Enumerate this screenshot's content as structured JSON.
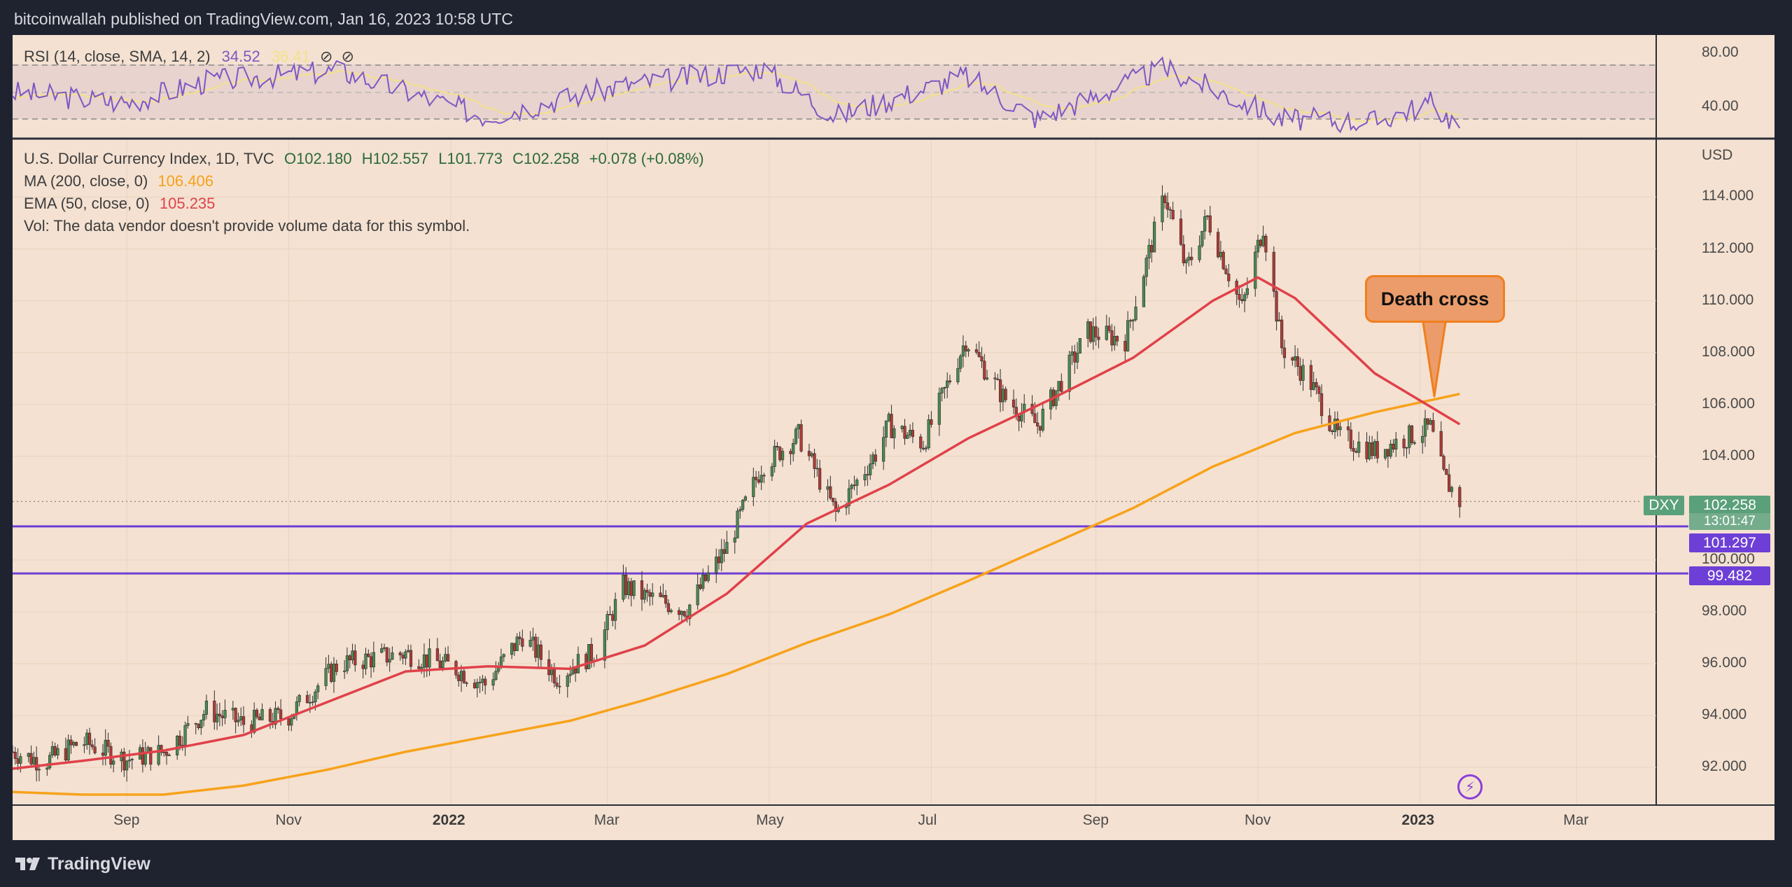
{
  "header": {
    "publisher_line": "bitcoinwallah published on TradingView.com, Jan 16, 2023 10:58 UTC"
  },
  "footer": {
    "brand": "TradingView",
    "logo_icon": "tradingview-logo-icon"
  },
  "rsi_panel": {
    "label": "RSI (14, close, SMA, 14, 2)",
    "rsi_value": "34.52",
    "sma_value": "36.41",
    "levels": [
      40.0,
      80.0
    ],
    "axis_labels": [
      "80.00",
      "40.00"
    ],
    "colors": {
      "rsi": "#7e57c2",
      "sma": "#f3e18a"
    }
  },
  "legend": {
    "symbol_line": "U.S. Dollar Currency Index, 1D, TVC",
    "open": "O102.180",
    "high": "H102.557",
    "low": "L101.773",
    "close": "C102.258",
    "change": "+0.078 (+0.08%)",
    "ma_label": "MA (200, close, 0)",
    "ma_value": "106.406",
    "ema_label": "EMA (50, close, 0)",
    "ema_value": "105.235",
    "vol_note": "Vol: The data vendor doesn't provide volume data for this symbol."
  },
  "price_axis": {
    "currency": "USD",
    "labels": [
      "114.000",
      "112.000",
      "110.000",
      "108.000",
      "106.000",
      "104.000",
      "100.000",
      "98.000",
      "96.000",
      "94.000",
      "92.000"
    ]
  },
  "time_axis": {
    "labels": [
      "Sep",
      "Nov",
      "2022",
      "Mar",
      "May",
      "Jul",
      "Sep",
      "Nov",
      "2023",
      "Mar"
    ]
  },
  "tags": {
    "symbol": "DXY",
    "last_price": "102.258",
    "countdown": "13:01:47",
    "level_1": "101.297",
    "level_2": "99.482"
  },
  "annotation": {
    "text": "Death cross"
  },
  "icons": {
    "flash": "flash-icon"
  },
  "colors": {
    "background": "#f4e1d1",
    "frame": "#1f2330",
    "up_candle": "#4a8a52",
    "down_candle": "#b03a35",
    "ma200": "#f7a21b",
    "ema50": "#e0414a",
    "support": "#6e3fd6",
    "annotation_fill": "#eb9c6a",
    "annotation_border": "#f07f1e"
  },
  "chart_data": {
    "type": "candlestick",
    "title": "U.S. Dollar Currency Index, 1D, TVC",
    "ylabel": "USD",
    "ylim": [
      90.6,
      116.2
    ],
    "x_range": [
      "2021-07-20",
      "2023-03-31"
    ],
    "series": [
      {
        "name": "MA (200, close, 0)",
        "points": [
          [
            "2021-07-20",
            91.05
          ],
          [
            "2021-08-15",
            90.95
          ],
          [
            "2021-09-15",
            90.95
          ],
          [
            "2021-10-15",
            91.3
          ],
          [
            "2021-11-15",
            91.9
          ],
          [
            "2021-12-15",
            92.6
          ],
          [
            "2022-01-15",
            93.2
          ],
          [
            "2022-02-15",
            93.8
          ],
          [
            "2022-03-15",
            94.6
          ],
          [
            "2022-04-15",
            95.6
          ],
          [
            "2022-05-15",
            96.8
          ],
          [
            "2022-06-15",
            97.9
          ],
          [
            "2022-07-15",
            99.2
          ],
          [
            "2022-08-15",
            100.6
          ],
          [
            "2022-09-15",
            102.0
          ],
          [
            "2022-10-15",
            103.6
          ],
          [
            "2022-11-15",
            104.9
          ],
          [
            "2022-12-15",
            105.7
          ],
          [
            "2023-01-16",
            106.406
          ]
        ]
      },
      {
        "name": "EMA (50, close, 0)",
        "points": [
          [
            "2021-07-20",
            91.95
          ],
          [
            "2021-08-15",
            92.25
          ],
          [
            "2021-09-15",
            92.65
          ],
          [
            "2021-10-15",
            93.25
          ],
          [
            "2021-11-15",
            94.5
          ],
          [
            "2021-12-15",
            95.7
          ],
          [
            "2022-01-15",
            95.9
          ],
          [
            "2022-02-15",
            95.8
          ],
          [
            "2022-03-15",
            96.7
          ],
          [
            "2022-04-15",
            98.7
          ],
          [
            "2022-05-15",
            101.4
          ],
          [
            "2022-06-15",
            102.9
          ],
          [
            "2022-07-15",
            104.7
          ],
          [
            "2022-08-15",
            106.2
          ],
          [
            "2022-09-15",
            107.8
          ],
          [
            "2022-10-15",
            110.0
          ],
          [
            "2022-11-01",
            110.9
          ],
          [
            "2022-11-15",
            110.1
          ],
          [
            "2022-12-15",
            107.2
          ],
          [
            "2023-01-16",
            105.235
          ]
        ]
      }
    ],
    "price_path": [
      [
        "2021-07-20",
        92.6
      ],
      [
        "2021-08-01",
        92.2
      ],
      [
        "2021-08-15",
        93.0
      ],
      [
        "2021-09-01",
        92.3
      ],
      [
        "2021-09-15",
        92.6
      ],
      [
        "2021-10-01",
        94.2
      ],
      [
        "2021-10-15",
        93.7
      ],
      [
        "2021-11-01",
        94.0
      ],
      [
        "2021-11-20",
        96.0
      ],
      [
        "2021-12-15",
        96.4
      ],
      [
        "2022-01-01",
        95.9
      ],
      [
        "2022-01-14",
        95.2
      ],
      [
        "2022-01-28",
        97.1
      ],
      [
        "2022-02-10",
        95.5
      ],
      [
        "2022-02-25",
        96.5
      ],
      [
        "2022-03-07",
        99.0
      ],
      [
        "2022-03-15",
        98.6
      ],
      [
        "2022-03-31",
        98.1
      ],
      [
        "2022-04-15",
        100.5
      ],
      [
        "2022-04-28",
        103.6
      ],
      [
        "2022-05-12",
        104.8
      ],
      [
        "2022-05-26",
        101.8
      ],
      [
        "2022-06-10",
        104.1
      ],
      [
        "2022-06-15",
        105.2
      ],
      [
        "2022-06-28",
        104.5
      ],
      [
        "2022-07-14",
        108.5
      ],
      [
        "2022-07-28",
        106.3
      ],
      [
        "2022-08-10",
        105.2
      ],
      [
        "2022-08-29",
        108.8
      ],
      [
        "2022-09-12",
        108.5
      ],
      [
        "2022-09-27",
        114.1
      ],
      [
        "2022-10-05",
        111.2
      ],
      [
        "2022-10-13",
        113.2
      ],
      [
        "2022-10-26",
        109.7
      ],
      [
        "2022-11-03",
        112.9
      ],
      [
        "2022-11-10",
        108.2
      ],
      [
        "2022-11-20",
        107.0
      ],
      [
        "2022-12-01",
        104.8
      ],
      [
        "2022-12-15",
        104.2
      ],
      [
        "2023-01-05",
        105.1
      ],
      [
        "2023-01-10",
        103.2
      ],
      [
        "2023-01-16",
        102.258
      ]
    ],
    "horizontal_lines": [
      101.297,
      99.482
    ],
    "annotations": [
      {
        "text": "Death cross",
        "x": "2022-12-30",
        "y": 106.3
      }
    ],
    "rsi_series_approx": [
      [
        "2021-07-20",
        60
      ],
      [
        "2021-09-01",
        52
      ],
      [
        "2021-10-01",
        68
      ],
      [
        "2021-11-20",
        76
      ],
      [
        "2022-01-14",
        42
      ],
      [
        "2022-03-07",
        65
      ],
      [
        "2022-04-28",
        78
      ],
      [
        "2022-05-26",
        42
      ],
      [
        "2022-07-14",
        72
      ],
      [
        "2022-08-10",
        40
      ],
      [
        "2022-09-27",
        78
      ],
      [
        "2022-11-10",
        40
      ],
      [
        "2022-12-15",
        38
      ],
      [
        "2023-01-05",
        52
      ],
      [
        "2023-01-16",
        34.52
      ]
    ]
  }
}
